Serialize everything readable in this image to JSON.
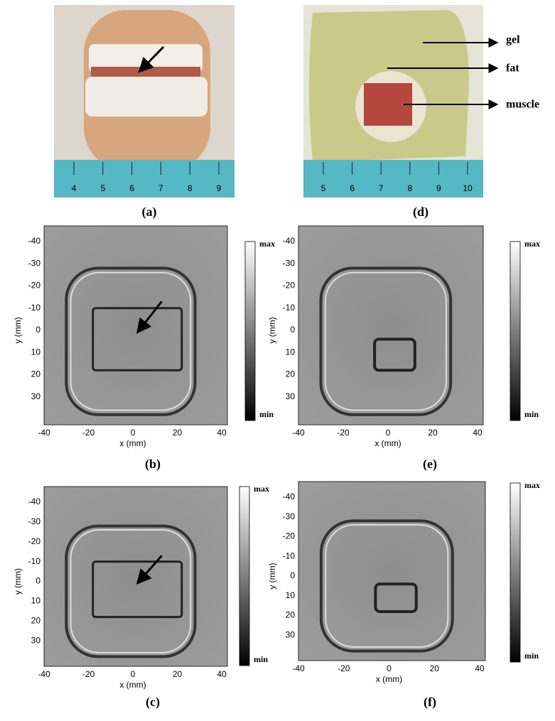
{
  "photos": [
    {
      "label": "(a)",
      "ruler": [
        4,
        5,
        6,
        7,
        8,
        9
      ]
    },
    {
      "label": "(d)",
      "ruler": [
        5,
        6,
        7,
        8,
        9,
        10
      ],
      "annotations": [
        "gel",
        "fat",
        "muscle"
      ]
    }
  ],
  "scans": [
    {
      "label": "(b)",
      "x_axis": "x (mm)",
      "y_axis": "y (mm)",
      "xticks": [
        -40,
        -20,
        0,
        20,
        40
      ],
      "yticks": [
        -40,
        -30,
        -20,
        -10,
        0,
        10,
        20,
        30
      ],
      "colorbar": [
        "max",
        "min"
      ]
    },
    {
      "label": "(e)",
      "x_axis": "x (mm)",
      "y_axis": "y (mm)",
      "xticks": [
        -40,
        -20,
        0,
        20,
        40
      ],
      "yticks": [
        -40,
        -30,
        -20,
        -10,
        0,
        10,
        20,
        30
      ],
      "colorbar": [
        "max",
        "min"
      ]
    },
    {
      "label": "(c)",
      "x_axis": "x (mm)",
      "y_axis": "y (mm)",
      "xticks": [
        -40,
        -20,
        0,
        20,
        40
      ],
      "yticks": [
        -40,
        -30,
        -20,
        -10,
        0,
        10,
        20,
        30
      ],
      "colorbar": [
        "max",
        "min"
      ]
    },
    {
      "label": "(f)",
      "x_axis": "x (mm)",
      "y_axis": "y (mm)",
      "xticks": [
        -40,
        -20,
        0,
        20,
        40
      ],
      "yticks": [
        -40,
        -30,
        -20,
        -10,
        0,
        10,
        20,
        30
      ],
      "colorbar": [
        "max",
        "min"
      ]
    }
  ]
}
